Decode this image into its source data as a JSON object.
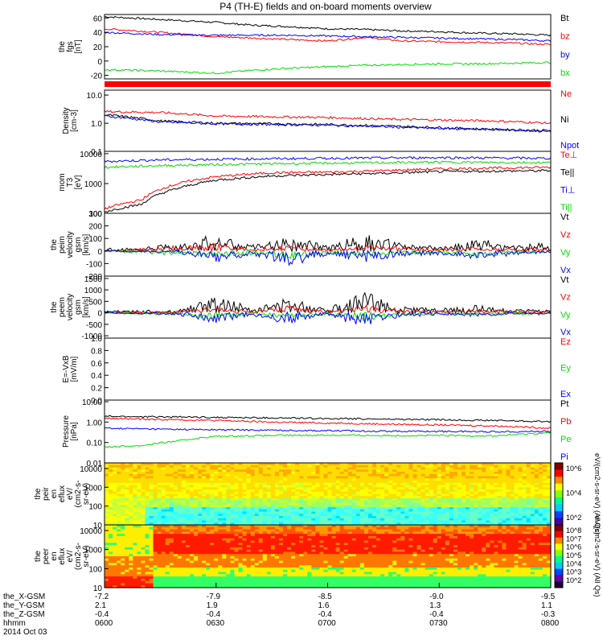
{
  "title": "P4 (TH-E) fields and on-board moments overview",
  "colors": {
    "black": "#000000",
    "red": "#ff0000",
    "green": "#00dd00",
    "blue": "#0000ff"
  },
  "chart_data": [
    {
      "type": "line",
      "ylabel_lines": [
        "the",
        "fgs",
        "[nT]"
      ],
      "ylim": [
        -25,
        65
      ],
      "yscale": "linear",
      "yticks": [
        "60",
        "40",
        "20",
        "0",
        "-20"
      ],
      "yticks_values": [
        60,
        40,
        20,
        0,
        -20
      ],
      "legend": [
        "Bt",
        "bz",
        "by",
        "bx"
      ],
      "series": [
        {
          "name": "Bt",
          "color": "black",
          "x": [
            0,
            15,
            30,
            40,
            50,
            60,
            70,
            80,
            90,
            100,
            110,
            120
          ],
          "y": [
            62,
            58,
            54,
            50,
            48,
            45,
            44,
            42,
            41,
            39,
            38,
            36
          ]
        },
        {
          "name": "bz",
          "color": "red",
          "x": [
            0,
            15,
            30,
            40,
            50,
            60,
            70,
            80,
            90,
            100,
            110,
            120
          ],
          "y": [
            45,
            40,
            34,
            32,
            30,
            28,
            33,
            28,
            27,
            26,
            25,
            23
          ]
        },
        {
          "name": "by",
          "color": "blue",
          "x": [
            0,
            15,
            30,
            40,
            50,
            60,
            70,
            80,
            90,
            100,
            110,
            120
          ],
          "y": [
            40,
            37,
            36,
            36,
            36,
            35,
            34,
            33,
            32,
            31,
            30,
            28
          ]
        },
        {
          "name": "bx",
          "color": "green",
          "x": [
            0,
            15,
            30,
            40,
            50,
            60,
            70,
            80,
            90,
            100,
            110,
            120
          ],
          "y": [
            -12,
            -14,
            -17,
            -13,
            -10,
            -8,
            -6,
            -5,
            -4,
            -4,
            -3,
            -2
          ]
        }
      ]
    },
    {
      "type": "line",
      "ylabel_lines": [
        "Density",
        "[cm-3]"
      ],
      "ylim": [
        0.1,
        15
      ],
      "yscale": "log",
      "yticks": [
        "10.0",
        "1.0",
        "0.1"
      ],
      "yticks_values": [
        10,
        1,
        0.1
      ],
      "legend": [
        "Ne",
        "Ni",
        "Npot"
      ],
      "series": [
        {
          "name": "Ne",
          "color": "red",
          "x": [
            0,
            15,
            30,
            45,
            60,
            75,
            90,
            105,
            120
          ],
          "y": [
            2.6,
            2.4,
            1.8,
            1.7,
            1.6,
            1.4,
            1.3,
            1.2,
            1.0
          ]
        },
        {
          "name": "Ni",
          "color": "black",
          "x": [
            0,
            15,
            30,
            45,
            60,
            75,
            90,
            105,
            120
          ],
          "y": [
            2.0,
            1.2,
            1.0,
            0.95,
            0.9,
            0.8,
            0.7,
            0.6,
            0.55
          ]
        },
        {
          "name": "Npot",
          "color": "blue",
          "x": [
            0,
            15,
            30,
            45,
            60,
            75,
            90,
            105,
            120
          ],
          "y": [
            1.8,
            1.1,
            0.95,
            0.9,
            0.85,
            0.75,
            0.65,
            0.6,
            0.5
          ]
        }
      ]
    },
    {
      "type": "line",
      "ylabel_lines": [
        "mom",
        "T3",
        "[eV]"
      ],
      "ylim": [
        100,
        12000
      ],
      "yscale": "log",
      "yticks": [
        "10000",
        "1000",
        "100"
      ],
      "yticks_values": [
        10000,
        1000,
        100
      ],
      "legend": [
        "Te⊥",
        "Te||",
        "Ti⊥",
        "Ti||"
      ],
      "series": [
        {
          "name": "Te⊥",
          "color": "red",
          "x": [
            0,
            10,
            20,
            30,
            45,
            60,
            75,
            90,
            105,
            120
          ],
          "y": [
            140,
            280,
            1000,
            1700,
            2300,
            2400,
            2700,
            3100,
            3300,
            3500
          ]
        },
        {
          "name": "Te||",
          "color": "black",
          "x": [
            0,
            10,
            20,
            30,
            45,
            60,
            75,
            90,
            105,
            120
          ],
          "y": [
            110,
            200,
            700,
            1300,
            1800,
            2000,
            2200,
            2500,
            2600,
            2700
          ]
        },
        {
          "name": "Ti⊥",
          "color": "blue",
          "x": [
            0,
            15,
            30,
            45,
            60,
            75,
            90,
            105,
            120
          ],
          "y": [
            5500,
            6200,
            6500,
            6800,
            7000,
            7200,
            7400,
            7200,
            7000
          ]
        },
        {
          "name": "Ti||",
          "color": "green",
          "x": [
            0,
            15,
            30,
            45,
            60,
            75,
            90,
            105,
            120
          ],
          "y": [
            3500,
            4000,
            4300,
            4600,
            4800,
            5000,
            5200,
            5100,
            5000
          ]
        }
      ]
    },
    {
      "type": "line",
      "ylabel_lines": [
        "the",
        "peim",
        "velocity",
        "gsm",
        "[km/s]"
      ],
      "ylim": [
        -200,
        300
      ],
      "yscale": "linear",
      "yticks": [
        "300",
        "200",
        "100",
        "0",
        "-100",
        "-200"
      ],
      "yticks_values": [
        300,
        200,
        100,
        0,
        -100,
        -200
      ],
      "legend": [
        "Vt",
        "Vz",
        "Vy",
        "Vx"
      ],
      "series": [
        {
          "name": "Vt",
          "color": "black",
          "x": [
            0,
            10,
            20,
            30,
            40,
            50,
            60,
            70,
            80,
            90,
            100,
            110,
            120
          ],
          "y": [
            10,
            15,
            40,
            80,
            30,
            70,
            30,
            90,
            40,
            20,
            60,
            30,
            40
          ]
        },
        {
          "name": "Vz",
          "color": "red",
          "x": [
            0,
            10,
            20,
            30,
            40,
            50,
            60,
            70,
            80,
            90,
            100,
            110,
            120
          ],
          "y": [
            5,
            10,
            25,
            40,
            10,
            30,
            10,
            30,
            20,
            10,
            20,
            10,
            15
          ]
        },
        {
          "name": "Vy",
          "color": "green",
          "x": [
            0,
            10,
            20,
            30,
            40,
            50,
            60,
            70,
            80,
            90,
            100,
            110,
            120
          ],
          "y": [
            0,
            -10,
            -20,
            -30,
            -20,
            -40,
            -10,
            -30,
            -20,
            -10,
            -30,
            -10,
            -10
          ]
        },
        {
          "name": "Vx",
          "color": "blue",
          "x": [
            0,
            10,
            20,
            30,
            40,
            50,
            60,
            70,
            80,
            90,
            100,
            110,
            120
          ],
          "y": [
            0,
            -5,
            -10,
            -60,
            -20,
            -80,
            -20,
            -60,
            -30,
            -20,
            -40,
            -20,
            -10
          ]
        }
      ]
    },
    {
      "type": "line",
      "ylabel_lines": [
        "the",
        "peem",
        "velocity",
        "gsm",
        "[km/s]"
      ],
      "ylim": [
        -1100,
        1600
      ],
      "yscale": "linear",
      "yticks": [
        "1500",
        "1000",
        "500",
        "0",
        "-500",
        "-1000"
      ],
      "yticks_values": [
        1500,
        1000,
        500,
        0,
        -500,
        -1000
      ],
      "legend": [
        "Vt",
        "Vz",
        "Vy",
        "Vx"
      ],
      "series": [
        {
          "name": "Vt",
          "color": "black",
          "x": [
            0,
            10,
            20,
            30,
            40,
            50,
            60,
            70,
            80,
            90,
            100,
            110,
            120
          ],
          "y": [
            50,
            60,
            100,
            450,
            150,
            400,
            150,
            600,
            200,
            100,
            200,
            100,
            100
          ]
        },
        {
          "name": "Vz",
          "color": "red",
          "x": [
            0,
            10,
            20,
            30,
            40,
            50,
            60,
            70,
            80,
            90,
            100,
            110,
            120
          ],
          "y": [
            10,
            20,
            40,
            150,
            50,
            200,
            50,
            250,
            80,
            40,
            80,
            40,
            40
          ]
        },
        {
          "name": "Vy",
          "color": "green",
          "x": [
            0,
            10,
            20,
            30,
            40,
            50,
            60,
            70,
            80,
            90,
            100,
            110,
            120
          ],
          "y": [
            0,
            -20,
            -40,
            -200,
            -50,
            -150,
            -50,
            -250,
            -80,
            -40,
            -60,
            -30,
            -30
          ]
        },
        {
          "name": "Vx",
          "color": "blue",
          "x": [
            0,
            10,
            20,
            30,
            40,
            50,
            60,
            70,
            80,
            90,
            100,
            110,
            120
          ],
          "y": [
            0,
            -20,
            -50,
            -300,
            -80,
            -350,
            -60,
            -400,
            -100,
            -50,
            -80,
            -40,
            -40
          ]
        }
      ]
    },
    {
      "type": "line",
      "ylabel_lines": [
        "E=-VxB",
        "[mV/m]"
      ],
      "ylim": [
        0,
        1
      ],
      "yscale": "linear",
      "yticks": [
        "1.0",
        "0.8",
        "0.6",
        "0.4",
        "0.2",
        "0.0"
      ],
      "yticks_values": [
        1.0,
        0.8,
        0.6,
        0.4,
        0.2,
        0.0
      ],
      "legend": [
        "Ez",
        "Ey",
        "Ex"
      ],
      "series": []
    },
    {
      "type": "line",
      "ylabel_lines": [
        "Pressure",
        "[nPa]"
      ],
      "ylim": [
        0.01,
        12
      ],
      "yscale": "log",
      "yticks": [
        "10.00",
        "1.00",
        "0.10",
        "0.01"
      ],
      "yticks_values": [
        10,
        1,
        0.1,
        0.01
      ],
      "legend": [
        "Pt",
        "Pb",
        "Pe",
        "Pi"
      ],
      "series": [
        {
          "name": "Pt",
          "color": "black",
          "x": [
            0,
            15,
            30,
            45,
            60,
            75,
            90,
            105,
            120
          ],
          "y": [
            1.9,
            1.8,
            1.7,
            1.6,
            1.5,
            1.4,
            1.3,
            1.2,
            1.05
          ]
        },
        {
          "name": "Pb",
          "color": "red",
          "x": [
            0,
            15,
            30,
            45,
            60,
            75,
            90,
            105,
            120
          ],
          "y": [
            1.5,
            1.35,
            1.2,
            1.0,
            0.9,
            0.8,
            0.72,
            0.65,
            0.5
          ]
        },
        {
          "name": "Pe",
          "color": "green",
          "x": [
            0,
            10,
            20,
            30,
            45,
            60,
            75,
            90,
            105,
            120
          ],
          "y": [
            0.06,
            0.07,
            0.12,
            0.2,
            0.22,
            0.23,
            0.22,
            0.22,
            0.21,
            0.3
          ]
        },
        {
          "name": "Pi",
          "color": "blue",
          "x": [
            0,
            15,
            30,
            45,
            60,
            75,
            90,
            105,
            120
          ],
          "y": [
            0.5,
            0.45,
            0.42,
            0.4,
            0.38,
            0.36,
            0.35,
            0.34,
            0.35
          ]
        }
      ]
    },
    {
      "type": "heatmap",
      "ylabel_lines": [
        "the",
        "peir",
        "en",
        "eflux",
        "eV/",
        "(cm2-s-",
        "sr-eV)"
      ],
      "ylim": [
        10,
        20000
      ],
      "yscale": "log",
      "yticks": [
        "10000",
        "1000",
        "100",
        "10"
      ],
      "yticks_values": [
        10000,
        1000,
        100,
        10
      ],
      "colorbar_ticks": [
        "10^6",
        "10^4",
        "10^2"
      ],
      "colorbar_label": "eV/(cm2-s-sr-eV) (All Qs)"
    },
    {
      "type": "heatmap",
      "ylabel_lines": [
        "the",
        "peer",
        "en",
        "eflux",
        "eV/",
        "(cm2-s-",
        "sr-eV)"
      ],
      "ylim": [
        10,
        20000
      ],
      "yscale": "log",
      "yticks": [
        "10000",
        "1000",
        "100",
        "10"
      ],
      "yticks_values": [
        10000,
        1000,
        100,
        10
      ],
      "colorbar_ticks": [
        "10^8",
        "10^7",
        "10^6",
        "10^5",
        "10^4",
        "10^3",
        "10^2"
      ],
      "colorbar_label": "eV/(cm2-s-sr-eV) (All Qs)"
    }
  ],
  "xaxis": {
    "row_labels": [
      "the_X-GSM",
      "the_Y-GSM",
      "the_Z-GSM",
      "hhmm",
      "2014 Oct 03"
    ],
    "columns": [
      {
        "x": -7.2,
        "y": 2.1,
        "z": -0.4,
        "hhmm": "0600"
      },
      {
        "x": -7.9,
        "y": 1.9,
        "z": -0.4,
        "hhmm": "0630"
      },
      {
        "x": -8.5,
        "y": 1.6,
        "z": -0.4,
        "hhmm": "0700"
      },
      {
        "x": -9.0,
        "y": 1.3,
        "z": -0.4,
        "hhmm": "0730"
      },
      {
        "x": -9.5,
        "y": 1.1,
        "z": -0.3,
        "hhmm": "0800"
      }
    ],
    "minutes": [
      0,
      30,
      60,
      90,
      120
    ]
  },
  "status_bar": {
    "color": "red"
  }
}
